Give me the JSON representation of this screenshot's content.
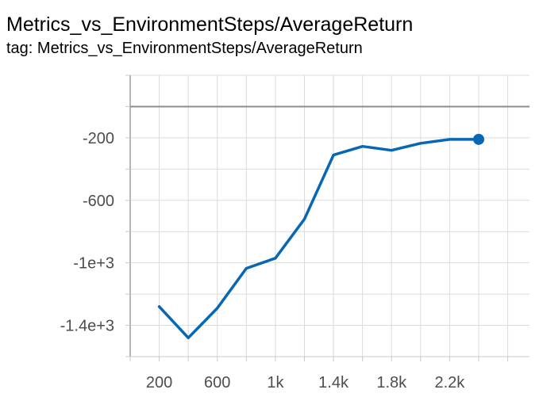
{
  "title": "Metrics_vs_EnvironmentSteps/AverageReturn",
  "tag": "tag: Metrics_vs_EnvironmentSteps/AverageReturn",
  "chart_data": {
    "type": "line",
    "title": "Metrics_vs_EnvironmentSteps/AverageReturn",
    "xlabel": "",
    "ylabel": "",
    "xlim": [
      0,
      2750
    ],
    "ylim": [
      -1600,
      200
    ],
    "x_ticks": [
      200,
      600,
      1000,
      1400,
      1800,
      2200
    ],
    "x_tick_labels": [
      "200",
      "600",
      "1k",
      "1.4k",
      "1.8k",
      "2.2k"
    ],
    "y_ticks": [
      -200,
      -600,
      -1000,
      -1400
    ],
    "y_tick_labels": [
      "-200",
      "-600",
      "-1e+3",
      "-1.4e+3"
    ],
    "grid": true,
    "series_color": "#0767b4",
    "series": [
      {
        "x": [
          200,
          400,
          600,
          800,
          1000,
          1200,
          1400,
          1600,
          1800,
          2000,
          2200,
          2400
        ],
        "values": [
          -1280,
          -1480,
          -1290,
          -1035,
          -970,
          -720,
          -310,
          -255,
          -280,
          -235,
          -210,
          -210
        ]
      }
    ]
  }
}
